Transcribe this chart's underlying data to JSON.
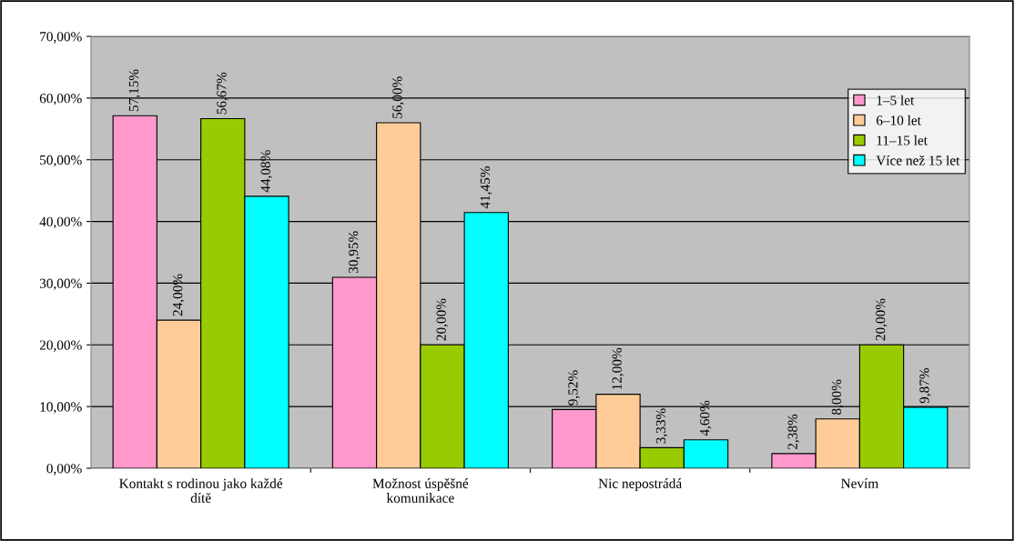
{
  "chart_data": {
    "type": "bar",
    "categories": [
      "Kontakt s rodinou jako každé\ndítě",
      "Možnost úspěšné\nkomunikace",
      "Nic nepostrádá",
      "Nevím"
    ],
    "series": [
      {
        "name": "1–5 let",
        "color": "#ff99cc",
        "values": [
          57.15,
          30.95,
          9.52,
          2.38
        ],
        "value_labels": [
          "57,15%",
          "30,95%",
          "9,52%",
          "2,38%"
        ]
      },
      {
        "name": "6–10 let",
        "color": "#ffcc99",
        "values": [
          24.0,
          56.0,
          12.0,
          8.0
        ],
        "value_labels": [
          "24,00%",
          "56,00%",
          "12,00%",
          "8,00%"
        ]
      },
      {
        "name": "11–15 let",
        "color": "#99cc00",
        "values": [
          56.67,
          20.0,
          3.33,
          20.0
        ],
        "value_labels": [
          "56,67%",
          "20,00%",
          "3,33%",
          "20,00%"
        ]
      },
      {
        "name": "Více než 15 let",
        "color": "#00ffff",
        "values": [
          44.08,
          41.45,
          4.6,
          9.87
        ],
        "value_labels": [
          "44,08%",
          "41,45%",
          "4,60%",
          "9,87%"
        ]
      }
    ],
    "ylim": [
      0,
      70
    ],
    "yticks": [
      {
        "value": 0,
        "label": "0,00%"
      },
      {
        "value": 10,
        "label": "10,00%"
      },
      {
        "value": 20,
        "label": "20,00%"
      },
      {
        "value": 30,
        "label": "30,00%"
      },
      {
        "value": 40,
        "label": "40,00%"
      },
      {
        "value": 50,
        "label": "50,00%"
      },
      {
        "value": 60,
        "label": "60,00%"
      },
      {
        "value": 70,
        "label": "70,00%"
      }
    ],
    "grid": "y",
    "legend": "right"
  }
}
